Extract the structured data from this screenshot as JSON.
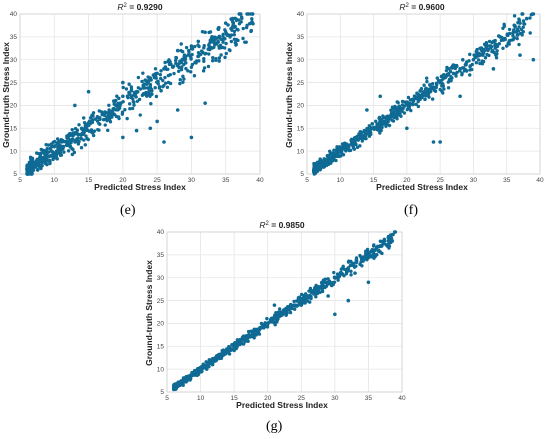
{
  "chart_data": [
    {
      "type": "scatter",
      "title_prefix": "R",
      "title_sup": "2",
      "title_value": " = 0.9290",
      "xlabel": "Predicted Stress Index",
      "ylabel": "Ground-truth Stress Index",
      "xlim": [
        5,
        40
      ],
      "ylim": [
        5,
        40
      ],
      "xticks": [
        "5",
        "10",
        "15",
        "20",
        "25",
        "30",
        "35",
        "40"
      ],
      "yticks": [
        "5",
        "10",
        "15",
        "20",
        "25",
        "30",
        "35",
        "40"
      ],
      "grid": true,
      "color": "#0f6a94",
      "caption": "(e)",
      "sample_points": [
        [
          7,
          7
        ],
        [
          8,
          8.5
        ],
        [
          9,
          9
        ],
        [
          10,
          11
        ],
        [
          11,
          12
        ],
        [
          12,
          13
        ],
        [
          13,
          14
        ],
        [
          14,
          15
        ],
        [
          15,
          16
        ],
        [
          16,
          17
        ],
        [
          17,
          18
        ],
        [
          18,
          19
        ],
        [
          19,
          20
        ],
        [
          20,
          22
        ],
        [
          21,
          22.5
        ],
        [
          22,
          23
        ],
        [
          23,
          24
        ],
        [
          24,
          26
        ],
        [
          25,
          27
        ],
        [
          26,
          28
        ],
        [
          27,
          29
        ],
        [
          28,
          32
        ],
        [
          29,
          31
        ],
        [
          30,
          33
        ],
        [
          31,
          34
        ],
        [
          32,
          36
        ],
        [
          33,
          35
        ],
        [
          34,
          37
        ],
        [
          35,
          38
        ],
        [
          36,
          39
        ],
        [
          37,
          40
        ],
        [
          20,
          13
        ],
        [
          22,
          14.5
        ],
        [
          24,
          15
        ],
        [
          25,
          16.5
        ],
        [
          26,
          12
        ],
        [
          28,
          19
        ],
        [
          30,
          13
        ],
        [
          32,
          20.5
        ],
        [
          13,
          20
        ],
        [
          15,
          23
        ],
        [
          20,
          25
        ]
      ]
    },
    {
      "type": "scatter",
      "title_prefix": "R",
      "title_sup": "2",
      "title_value": " = 0.9600",
      "xlabel": "Predicted Stress Index",
      "ylabel": "Ground-truth Stress Index",
      "xlim": [
        5,
        40
      ],
      "ylim": [
        5,
        40
      ],
      "xticks": [
        "5",
        "10",
        "15",
        "20",
        "25",
        "30",
        "35",
        "40"
      ],
      "yticks": [
        "5",
        "10",
        "15",
        "20",
        "25",
        "30",
        "35",
        "40"
      ],
      "grid": true,
      "color": "#0f6a94",
      "caption": "(f)",
      "sample_points": [
        [
          7,
          7
        ],
        [
          8,
          8
        ],
        [
          9,
          9.5
        ],
        [
          10,
          10
        ],
        [
          11,
          11.5
        ],
        [
          12,
          12
        ],
        [
          13,
          13
        ],
        [
          14,
          14.5
        ],
        [
          15,
          15
        ],
        [
          16,
          16
        ],
        [
          17,
          17.5
        ],
        [
          18,
          18
        ],
        [
          19,
          19
        ],
        [
          20,
          20.5
        ],
        [
          21,
          21
        ],
        [
          22,
          22
        ],
        [
          23,
          23.5
        ],
        [
          24,
          24
        ],
        [
          25,
          25
        ],
        [
          26,
          26.5
        ],
        [
          27,
          27
        ],
        [
          28,
          28
        ],
        [
          29,
          29.5
        ],
        [
          30,
          30
        ],
        [
          31,
          31
        ],
        [
          32,
          33
        ],
        [
          33,
          34
        ],
        [
          34,
          35
        ],
        [
          36,
          36
        ],
        [
          37,
          38
        ],
        [
          38,
          39
        ],
        [
          39,
          40
        ],
        [
          16,
          22
        ],
        [
          14,
          19
        ],
        [
          20,
          15
        ],
        [
          24,
          12
        ],
        [
          25,
          12
        ],
        [
          28,
          22
        ],
        [
          33,
          28
        ],
        [
          35,
          33
        ],
        [
          37,
          31
        ],
        [
          39,
          30
        ]
      ]
    },
    {
      "type": "scatter",
      "title_prefix": "R",
      "title_sup": "2",
      "title_value": " = 0.9850",
      "xlabel": "Predicted Stress Index",
      "ylabel": "Ground-truth Stress Index",
      "xlim": [
        5,
        40
      ],
      "ylim": [
        5,
        40
      ],
      "xticks": [
        "5",
        "10",
        "15",
        "20",
        "25",
        "30",
        "35",
        "40"
      ],
      "yticks": [
        "5",
        "10",
        "15",
        "20",
        "25",
        "30",
        "35",
        "40"
      ],
      "grid": true,
      "color": "#0f6a94",
      "caption": "(g)",
      "sample_points": [
        [
          6,
          6
        ],
        [
          7,
          7
        ],
        [
          8,
          8
        ],
        [
          9,
          9
        ],
        [
          10,
          10
        ],
        [
          11,
          11
        ],
        [
          12,
          12
        ],
        [
          13,
          13
        ],
        [
          14,
          14
        ],
        [
          15,
          15
        ],
        [
          16,
          16
        ],
        [
          17,
          17
        ],
        [
          18,
          18
        ],
        [
          19,
          19
        ],
        [
          20,
          20
        ],
        [
          21,
          21
        ],
        [
          22,
          22
        ],
        [
          23,
          23
        ],
        [
          24,
          24
        ],
        [
          25,
          25
        ],
        [
          26,
          26
        ],
        [
          27,
          27
        ],
        [
          28,
          28
        ],
        [
          29,
          29
        ],
        [
          30,
          30
        ],
        [
          31,
          31
        ],
        [
          32,
          32
        ],
        [
          34,
          34
        ],
        [
          35,
          35
        ],
        [
          36,
          36
        ],
        [
          37,
          37
        ],
        [
          38,
          39
        ],
        [
          39,
          40
        ],
        [
          21,
          24
        ],
        [
          30,
          22
        ],
        [
          32,
          25
        ],
        [
          35,
          29
        ],
        [
          29,
          26
        ],
        [
          25,
          24
        ],
        [
          33,
          31
        ]
      ]
    }
  ]
}
